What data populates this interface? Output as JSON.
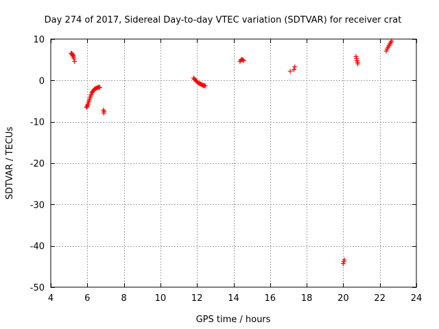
{
  "chart_data": {
    "type": "scatter",
    "title": "Day 274 of 2017, Sidereal Day-to-day VTEC variation (SDTVAR) for receiver crat",
    "xlabel": "GPS time / hours",
    "ylabel": "SDTVAR / TECUs",
    "xlim": [
      4,
      24
    ],
    "ylim": [
      -50,
      10
    ],
    "xticks": [
      4,
      6,
      8,
      10,
      12,
      14,
      16,
      18,
      20,
      22,
      24
    ],
    "yticks": [
      -50,
      -40,
      -30,
      -20,
      -10,
      0,
      10
    ],
    "xtick_labels": [
      "4",
      "6",
      "8",
      "10",
      "12",
      "14",
      "16",
      "18",
      "20",
      "22",
      "24"
    ],
    "ytick_labels": [
      "-50",
      "-40",
      "-30",
      "-20",
      "-10",
      "0",
      "10"
    ],
    "grid": true,
    "marker": "+",
    "series": [
      {
        "name": "SDTVAR",
        "color": "#ff0000",
        "points": [
          [
            5.12,
            6.6
          ],
          [
            5.15,
            6.5
          ],
          [
            5.18,
            6.3
          ],
          [
            5.2,
            6.1
          ],
          [
            5.22,
            5.9
          ],
          [
            5.25,
            5.6
          ],
          [
            5.27,
            5.2
          ],
          [
            5.3,
            4.6
          ],
          [
            5.95,
            -6.5
          ],
          [
            5.98,
            -6.4
          ],
          [
            6.0,
            -6.1
          ],
          [
            6.03,
            -5.8
          ],
          [
            6.06,
            -5.4
          ],
          [
            6.09,
            -5.0
          ],
          [
            6.12,
            -4.6
          ],
          [
            6.15,
            -4.2
          ],
          [
            6.18,
            -3.8
          ],
          [
            6.21,
            -3.4
          ],
          [
            6.25,
            -3.0
          ],
          [
            6.29,
            -2.7
          ],
          [
            6.33,
            -2.4
          ],
          [
            6.38,
            -2.2
          ],
          [
            6.43,
            -2.0
          ],
          [
            6.48,
            -1.9
          ],
          [
            6.53,
            -1.8
          ],
          [
            6.58,
            -1.7
          ],
          [
            6.63,
            -1.6
          ],
          [
            6.68,
            -1.7
          ],
          [
            6.88,
            -7.2
          ],
          [
            6.92,
            -7.5
          ],
          [
            6.9,
            -7.9
          ],
          [
            11.82,
            0.6
          ],
          [
            11.86,
            0.3
          ],
          [
            11.9,
            0.1
          ],
          [
            11.95,
            -0.1
          ],
          [
            12.0,
            -0.3
          ],
          [
            12.05,
            -0.5
          ],
          [
            12.1,
            -0.7
          ],
          [
            12.15,
            -0.8
          ],
          [
            12.2,
            -0.9
          ],
          [
            12.25,
            -1.0
          ],
          [
            12.3,
            -1.1
          ],
          [
            12.35,
            -1.2
          ],
          [
            12.4,
            -1.3
          ],
          [
            12.45,
            -1.3
          ],
          [
            14.35,
            4.6
          ],
          [
            14.4,
            4.9
          ],
          [
            14.45,
            5.1
          ],
          [
            14.5,
            5.0
          ],
          [
            14.55,
            4.8
          ],
          [
            17.1,
            2.2
          ],
          [
            17.3,
            2.6
          ],
          [
            17.35,
            3.3
          ],
          [
            20.0,
            -44.3
          ],
          [
            20.03,
            -43.8
          ],
          [
            20.06,
            -43.4
          ],
          [
            20.7,
            5.8
          ],
          [
            20.73,
            5.3
          ],
          [
            20.75,
            4.8
          ],
          [
            20.78,
            4.4
          ],
          [
            20.8,
            4.0
          ],
          [
            22.35,
            7.1
          ],
          [
            22.4,
            7.6
          ],
          [
            22.45,
            8.0
          ],
          [
            22.5,
            8.4
          ],
          [
            22.55,
            8.8
          ],
          [
            22.6,
            9.2
          ],
          [
            22.65,
            9.5
          ]
        ]
      }
    ]
  }
}
